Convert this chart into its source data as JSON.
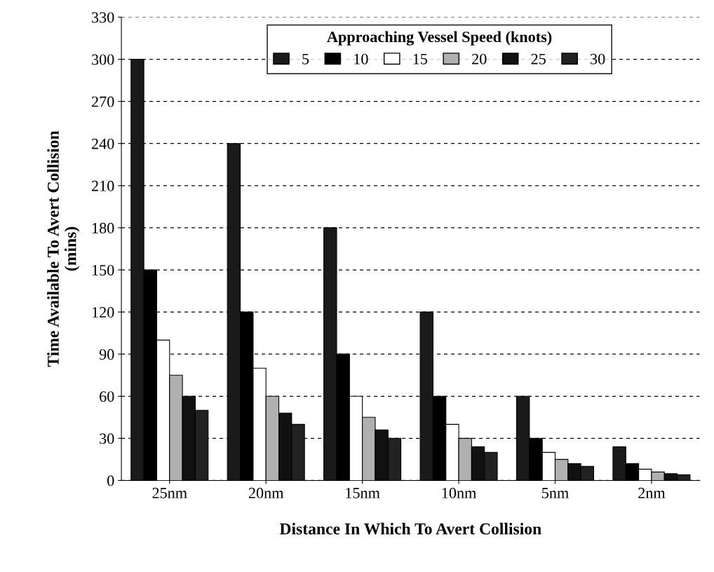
{
  "chart_data": {
    "type": "bar",
    "xlabel": "Distance In Which To Avert Collision",
    "ylabel": "Time Available To Avert Collision\n(mins)",
    "legend_title": "Approaching Vessel Speed (knots)",
    "categories": [
      "25nm",
      "20nm",
      "15nm",
      "10nm",
      "5nm",
      "2nm"
    ],
    "series": [
      {
        "name": "5",
        "color": "#1a1a1a",
        "values": [
          300,
          240,
          180,
          120,
          60,
          24
        ]
      },
      {
        "name": "10",
        "color": "#000000",
        "values": [
          150,
          120,
          90,
          60,
          30,
          12
        ]
      },
      {
        "name": "15",
        "color": "#ffffff",
        "values": [
          100,
          80,
          60,
          40,
          20,
          8
        ]
      },
      {
        "name": "20",
        "color": "#b0b0b0",
        "values": [
          75,
          60,
          45,
          30,
          15,
          6
        ]
      },
      {
        "name": "25",
        "color": "#111111",
        "values": [
          60,
          48,
          36,
          24,
          12,
          4.8
        ]
      },
      {
        "name": "30",
        "color": "#222222",
        "values": [
          50,
          40,
          30,
          20,
          10,
          4
        ]
      }
    ],
    "ylim": [
      0,
      330
    ],
    "yticks": [
      0,
      30,
      60,
      90,
      120,
      150,
      180,
      210,
      240,
      270,
      300,
      330
    ],
    "grid": "y",
    "legend": "top"
  }
}
